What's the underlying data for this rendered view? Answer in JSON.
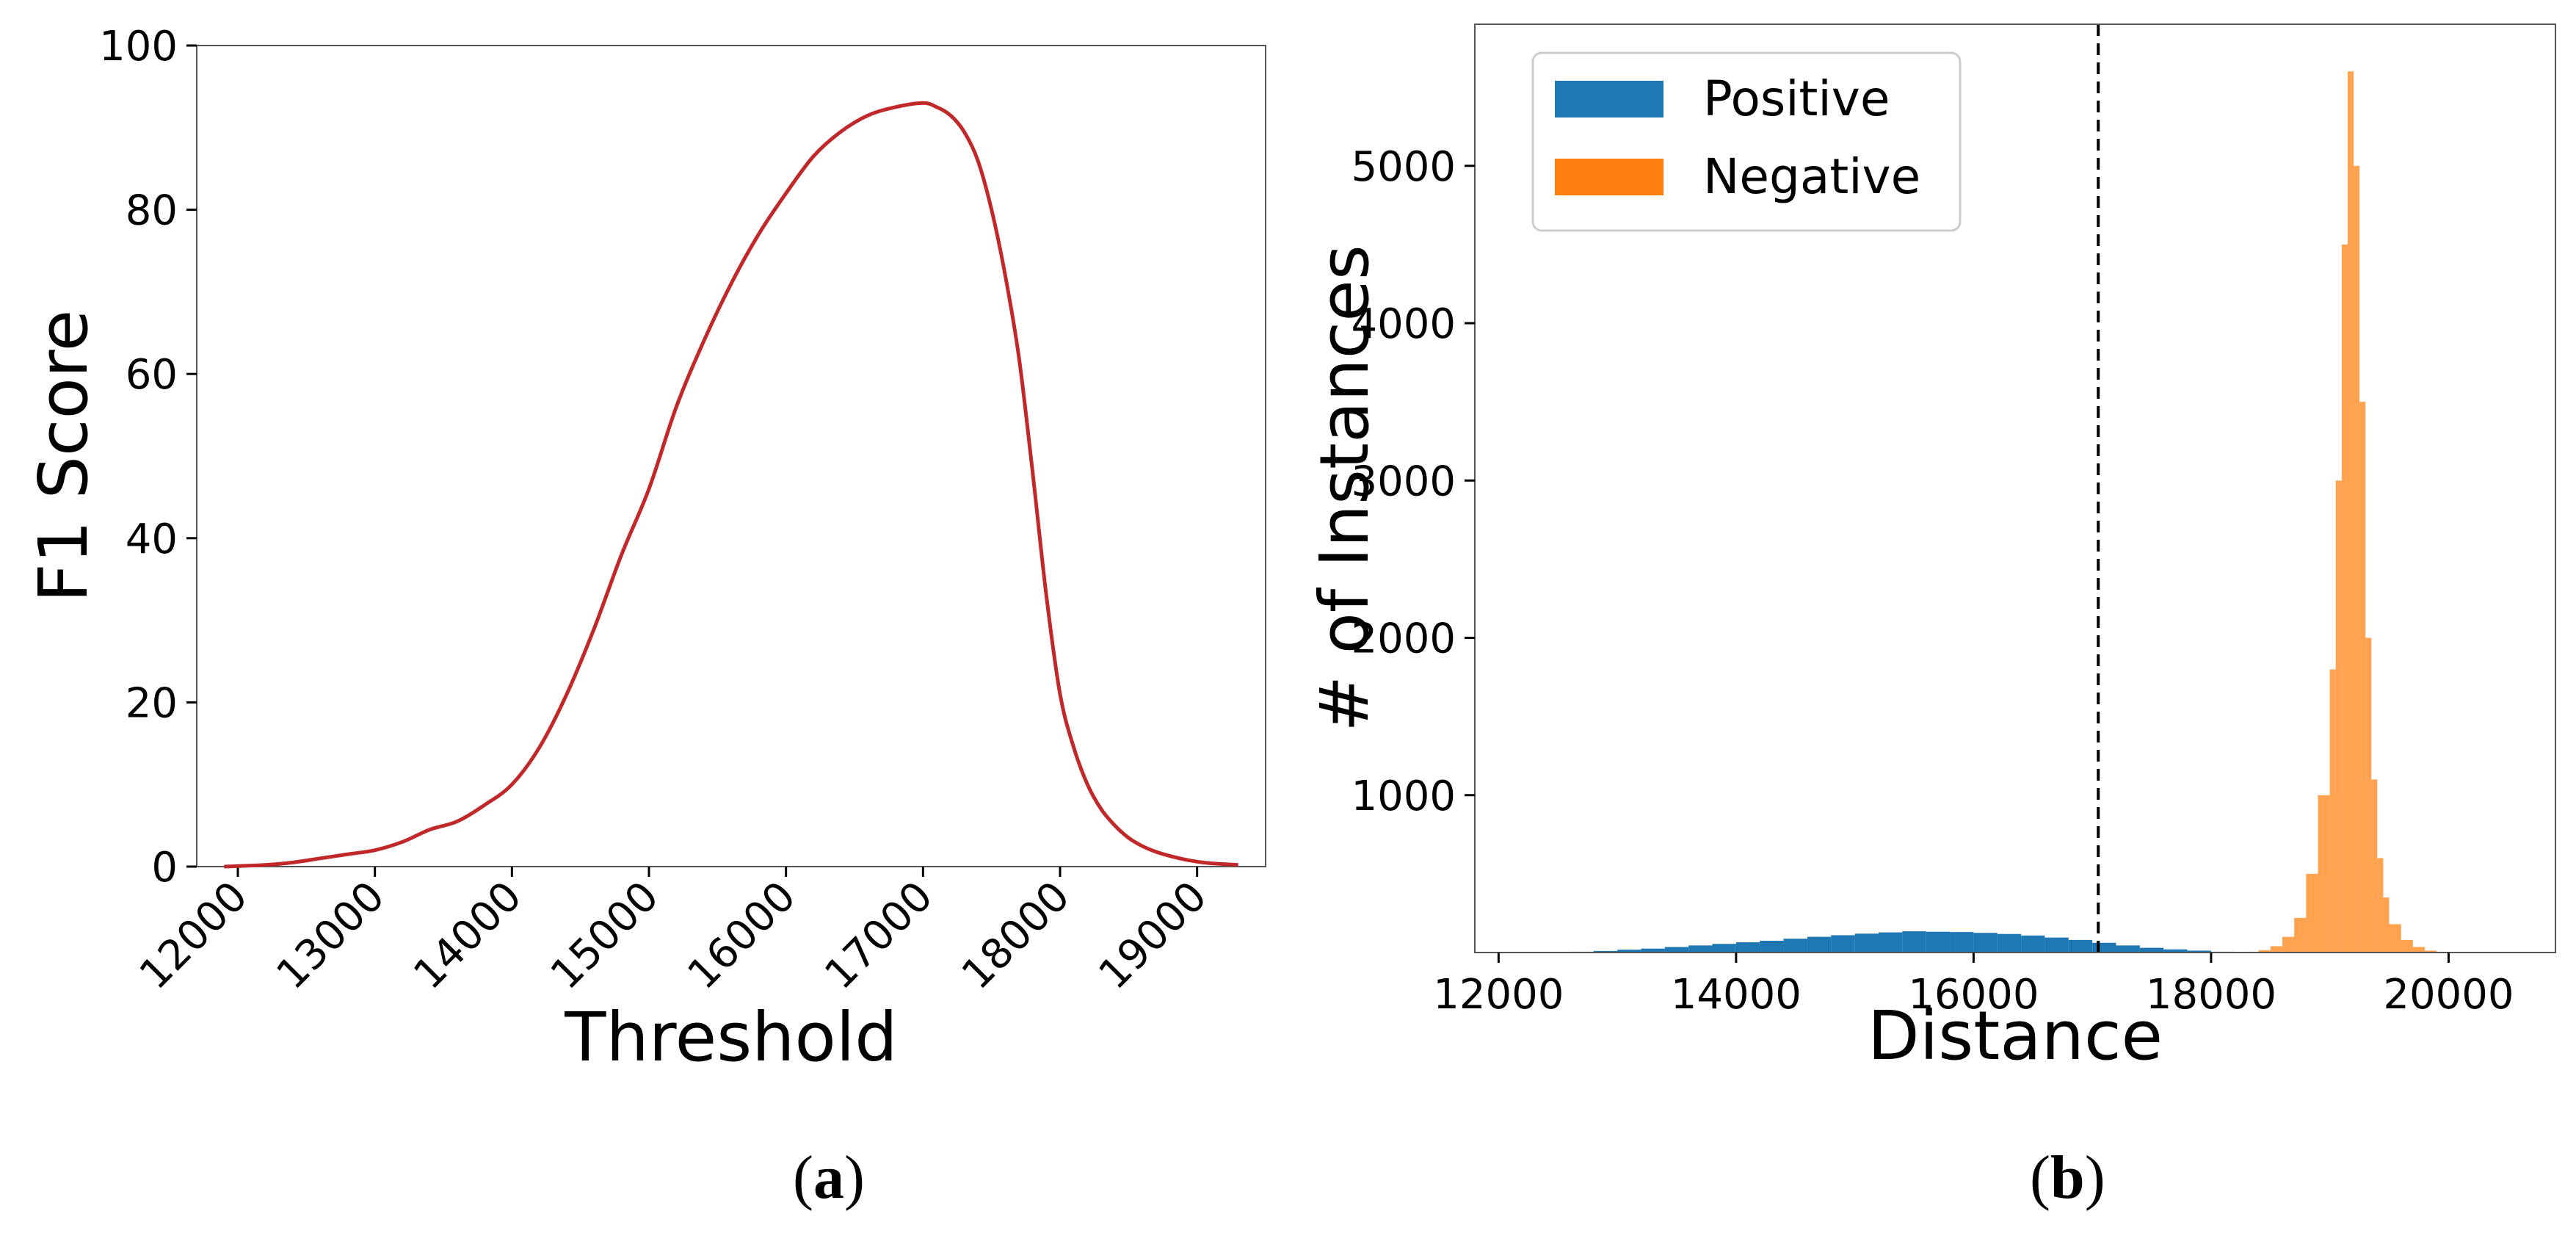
{
  "chart_data": [
    {
      "panel": "a",
      "type": "line",
      "title": "",
      "xlabel": "Threshold",
      "ylabel": "F1 Score",
      "xlim": [
        11700,
        19500
      ],
      "ylim": [
        0,
        100
      ],
      "xticks": [
        12000,
        13000,
        14000,
        15000,
        16000,
        17000,
        18000,
        19000
      ],
      "yticks": [
        0,
        20,
        40,
        60,
        80,
        100
      ],
      "grid": false,
      "series": [
        {
          "name": "F1 Score",
          "color": "#c0282a",
          "x": [
            11900,
            12200,
            12400,
            12600,
            12800,
            13000,
            13200,
            13400,
            13600,
            13800,
            14000,
            14200,
            14400,
            14600,
            14800,
            15000,
            15200,
            15400,
            15600,
            15800,
            16000,
            16200,
            16400,
            16600,
            16800,
            17000,
            17100,
            17200,
            17300,
            17400,
            17500,
            17600,
            17700,
            17800,
            17900,
            18000,
            18100,
            18200,
            18300,
            18400,
            18500,
            18600,
            18700,
            18800,
            18900,
            19000,
            19100,
            19200,
            19300
          ],
          "y": [
            0,
            0.2,
            0.5,
            1.0,
            1.5,
            2.0,
            3.0,
            4.5,
            5.5,
            7.5,
            10.0,
            14.5,
            21.0,
            29.0,
            38.0,
            46.0,
            56.0,
            64.0,
            71.0,
            77.0,
            82.0,
            86.5,
            89.5,
            91.5,
            92.5,
            93.0,
            92.5,
            91.5,
            89.5,
            86.0,
            80.0,
            72.0,
            62.0,
            48.0,
            33.0,
            21.0,
            14.5,
            10.0,
            7.0,
            5.0,
            3.5,
            2.5,
            1.8,
            1.3,
            0.9,
            0.6,
            0.4,
            0.3,
            0.2
          ]
        }
      ]
    },
    {
      "panel": "b",
      "type": "bar",
      "title": "",
      "xlabel": "Distance",
      "ylabel": "# of Instances",
      "xlim": [
        11800,
        20900
      ],
      "ylim": [
        0,
        5900
      ],
      "xticks": [
        12000,
        14000,
        16000,
        18000,
        20000
      ],
      "yticks": [
        1000,
        2000,
        3000,
        4000,
        5000
      ],
      "grid": false,
      "legend": {
        "placement": "top-left",
        "entries": [
          "Positive",
          "Negative"
        ]
      },
      "threshold_line": {
        "x": 17050,
        "style": "dashed",
        "color": "#000000"
      },
      "bin_width": 200,
      "series": [
        {
          "name": "Positive",
          "color": "#1f77b4",
          "bin_start": [
            12600,
            12800,
            13000,
            13200,
            13400,
            13600,
            13800,
            14000,
            14200,
            14400,
            14600,
            14800,
            15000,
            15200,
            15400,
            15600,
            15800,
            16000,
            16200,
            16400,
            16600,
            16800,
            17000,
            17200,
            17400,
            17600,
            17800,
            18000
          ],
          "counts": [
            5,
            10,
            18,
            25,
            35,
            45,
            55,
            65,
            75,
            88,
            100,
            110,
            120,
            128,
            135,
            132,
            130,
            125,
            118,
            108,
            95,
            80,
            62,
            45,
            30,
            20,
            12,
            5
          ]
        },
        {
          "name": "Negative",
          "color": "#ff7f0e",
          "bin_start": [
            18300,
            18400,
            18500,
            18600,
            18700,
            18800,
            18900,
            19000,
            19050,
            19100,
            19150,
            19200,
            19250,
            19300,
            19350,
            19400,
            19450,
            19500,
            19600,
            19700,
            19800,
            19900
          ],
          "bin_widths": [
            100,
            100,
            100,
            100,
            100,
            100,
            100,
            50,
            50,
            50,
            50,
            50,
            50,
            50,
            50,
            50,
            50,
            100,
            100,
            100,
            100,
            100
          ],
          "counts": [
            5,
            15,
            40,
            100,
            220,
            500,
            1000,
            1800,
            3000,
            4500,
            5600,
            5000,
            3500,
            2000,
            1100,
            600,
            350,
            180,
            80,
            35,
            12,
            4
          ]
        }
      ]
    }
  ],
  "captions": {
    "a": "a",
    "b": "b"
  }
}
